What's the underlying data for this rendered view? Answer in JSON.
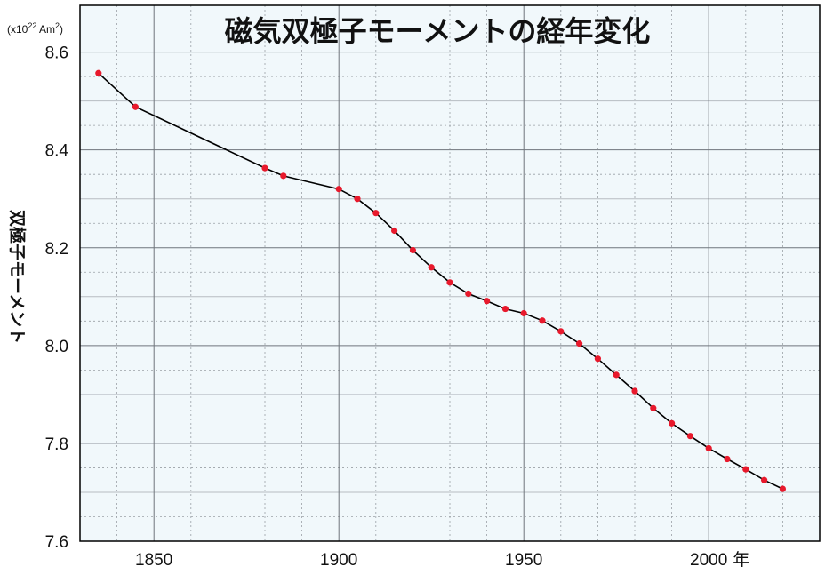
{
  "chart_data": {
    "type": "line",
    "title": "磁気双極子モーメントの経年変化",
    "ylabel": "双極子モーメント",
    "yunit_prefix": "(x10",
    "yunit_exp": "22",
    "yunit_mid": " Am",
    "yunit_sq": "2",
    "yunit_close": ")",
    "x_unit_suffix": "年",
    "xlim": [
      1830,
      2030
    ],
    "ylim": [
      7.6,
      8.65
    ],
    "x_ticks": [
      1850,
      1900,
      1950,
      2000
    ],
    "x_tick_labels": [
      "1850",
      "1900",
      "1950",
      "2000"
    ],
    "y_ticks": [
      7.6,
      7.8,
      8.0,
      8.2,
      8.4,
      8.6
    ],
    "y_tick_labels": [
      "7.6",
      "7.8",
      "8.0",
      "8.2",
      "8.4",
      "8.6"
    ],
    "grid": true,
    "line_color": "#000000",
    "marker_color": "#e8192c",
    "plot_bg": "#f1f8fb",
    "series": [
      {
        "x": [
          1835,
          1845,
          1880,
          1885,
          1900,
          1905,
          1910,
          1915,
          1920,
          1925,
          1930,
          1935,
          1940,
          1945,
          1950,
          1955,
          1960,
          1965,
          1970,
          1975,
          1980,
          1985,
          1990,
          1995,
          2000,
          2005,
          2010,
          2015,
          2020
        ],
        "y": [
          8.557,
          8.488,
          8.363,
          8.347,
          8.32,
          8.3,
          8.271,
          8.235,
          8.195,
          8.16,
          8.129,
          8.106,
          8.091,
          8.075,
          8.066,
          8.051,
          8.029,
          8.004,
          7.973,
          7.94,
          7.907,
          7.872,
          7.841,
          7.815,
          7.79,
          7.768,
          7.747,
          7.725,
          7.707
        ]
      }
    ]
  }
}
